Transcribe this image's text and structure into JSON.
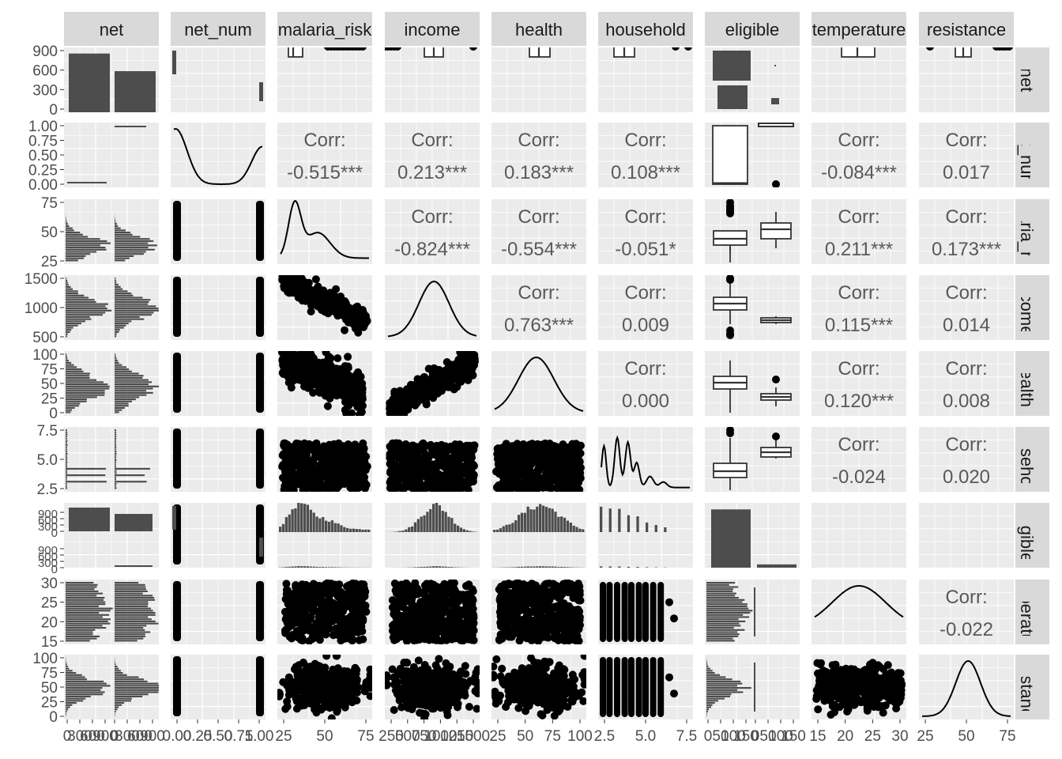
{
  "chart_data": {
    "type": "scatterplot-matrix",
    "variables": [
      "net",
      "net_num",
      "malaria_risk",
      "income",
      "health",
      "household",
      "eligible",
      "temperature",
      "resistance"
    ],
    "strip_labels_top": [
      "net",
      "net_num",
      "malaria_risk",
      "income",
      "health",
      "household",
      "eligible",
      "temperature",
      "resistance"
    ],
    "strip_labels_right": [
      "net",
      "net_num",
      "malaria_risk",
      "income",
      "health",
      "household",
      "eligible",
      "temperature",
      "resistance"
    ],
    "corr_label": "Corr:",
    "correlations": [
      {
        "row": 1,
        "col": 2,
        "value": "-0.515***"
      },
      {
        "row": 1,
        "col": 3,
        "value": "0.213***"
      },
      {
        "row": 1,
        "col": 4,
        "value": "0.183***"
      },
      {
        "row": 1,
        "col": 5,
        "value": "0.108***"
      },
      {
        "row": 1,
        "col": 7,
        "value": "-0.084***"
      },
      {
        "row": 1,
        "col": 8,
        "value": "0.017"
      },
      {
        "row": 2,
        "col": 3,
        "value": "-0.824***"
      },
      {
        "row": 2,
        "col": 4,
        "value": "-0.554***"
      },
      {
        "row": 2,
        "col": 5,
        "value": "-0.051*"
      },
      {
        "row": 2,
        "col": 7,
        "value": "0.211***"
      },
      {
        "row": 2,
        "col": 8,
        "value": "0.173***"
      },
      {
        "row": 3,
        "col": 4,
        "value": "0.763***"
      },
      {
        "row": 3,
        "col": 5,
        "value": "0.009"
      },
      {
        "row": 3,
        "col": 7,
        "value": "0.115***"
      },
      {
        "row": 3,
        "col": 8,
        "value": "0.014"
      },
      {
        "row": 4,
        "col": 5,
        "value": "0.000"
      },
      {
        "row": 4,
        "col": 7,
        "value": "0.120***"
      },
      {
        "row": 4,
        "col": 8,
        "value": "0.008"
      },
      {
        "row": 5,
        "col": 7,
        "value": "-0.024"
      },
      {
        "row": 5,
        "col": 8,
        "value": "0.020"
      },
      {
        "row": 7,
        "col": 8,
        "value": "-0.022"
      }
    ],
    "y_axis_ticks": [
      [
        "0",
        "300",
        "600",
        "900"
      ],
      [
        "0.00",
        "0.25",
        "0.50",
        "0.75",
        "1.00"
      ],
      [
        "25",
        "50",
        "75"
      ],
      [
        "500",
        "1000",
        "1500"
      ],
      [
        "0",
        "25",
        "50",
        "75",
        "100"
      ],
      [
        "2.5",
        "5.0",
        "7.5"
      ],
      [
        "0",
        "300",
        "600",
        "900",
        "0",
        "300",
        "600",
        "900"
      ],
      [
        "15",
        "20",
        "25",
        "30"
      ],
      [
        "0",
        "25",
        "50",
        "75",
        "100"
      ]
    ],
    "x_axis_ticks": [
      [
        "0",
        "300",
        "600",
        "900",
        "0",
        "300",
        "600",
        "900"
      ],
      [
        "0.00",
        "0.25",
        "0.50",
        "0.75",
        "1.00"
      ],
      [
        "25",
        "50",
        "75"
      ],
      [
        "250",
        "500",
        "750",
        "1000",
        "1250",
        "1500"
      ],
      [
        "25",
        "50",
        "75",
        "100"
      ],
      [
        "2.5",
        "5.0",
        "7.5"
      ],
      [
        "0",
        "50",
        "100",
        "150",
        "0",
        "50",
        "100",
        "150"
      ],
      [
        "15",
        "20",
        "25",
        "30"
      ],
      [
        "25",
        "50",
        "75"
      ]
    ],
    "net_counts": {
      "categories": [
        "FALSE",
        "TRUE"
      ],
      "values": [
        1000,
        700
      ]
    },
    "eligible_counts": {
      "categories": [
        "FALSE",
        "TRUE"
      ],
      "values": [
        1600,
        90
      ]
    },
    "colors": {
      "panel_bg": "#ebebeb",
      "grid": "#ffffff",
      "strip_bg": "#d9d9d9",
      "mark": "#000000",
      "bar": "#4d4d4d",
      "corr_text": "#595959",
      "axis_text": "#4d4d4d"
    }
  }
}
